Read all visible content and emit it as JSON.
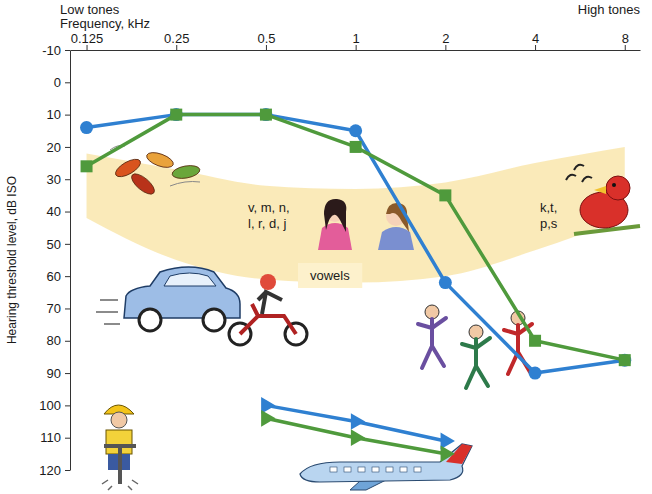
{
  "chart_data": {
    "type": "line",
    "log": "x",
    "grid": false,
    "top_labels": [
      "Low tones",
      "High tones"
    ],
    "x_label": "Frequency, kHz",
    "y_label": "Hearing threshold level, dB ISO",
    "x": [
      0.125,
      0.25,
      0.5,
      1,
      2,
      4,
      8
    ],
    "xlim": [
      0.11,
      9
    ],
    "xticks": [
      0.125,
      0.25,
      0.5,
      1,
      2,
      4,
      8
    ],
    "ylim": [
      -10,
      120
    ],
    "yticks": [
      -10,
      0,
      10,
      20,
      30,
      40,
      50,
      60,
      70,
      80,
      90,
      100,
      110,
      120
    ],
    "series": [
      {
        "color": "#2f80d1",
        "marker": "circle",
        "values": [
          14,
          10,
          10,
          15,
          62,
          90,
          86
        ]
      },
      {
        "color": "#4f9a3c",
        "marker": "square",
        "values": [
          26,
          10,
          10,
          20,
          35,
          80,
          86
        ]
      },
      {
        "x": [
          0.5,
          1,
          2
        ],
        "color": "#2f80d1",
        "marker": "triangle",
        "values": [
          100,
          105,
          111
        ]
      },
      {
        "x": [
          0.5,
          1,
          2
        ],
        "color": "#4f9a3c",
        "marker": "triangle",
        "values": [
          104,
          110,
          115
        ]
      }
    ],
    "band": {
      "x": [
        0.125,
        0.25,
        0.5,
        1,
        2,
        4,
        8
      ],
      "upper": [
        22,
        27,
        32,
        33,
        31,
        25,
        20
      ],
      "lower": [
        42,
        55,
        61,
        62,
        60,
        52,
        42
      ],
      "color": "#f9e6ad"
    },
    "annotations": [
      [
        "v, m, n,",
        "l, r, d, j"
      ],
      [
        "vowels"
      ],
      [
        "k,t,",
        "p,s"
      ]
    ]
  }
}
